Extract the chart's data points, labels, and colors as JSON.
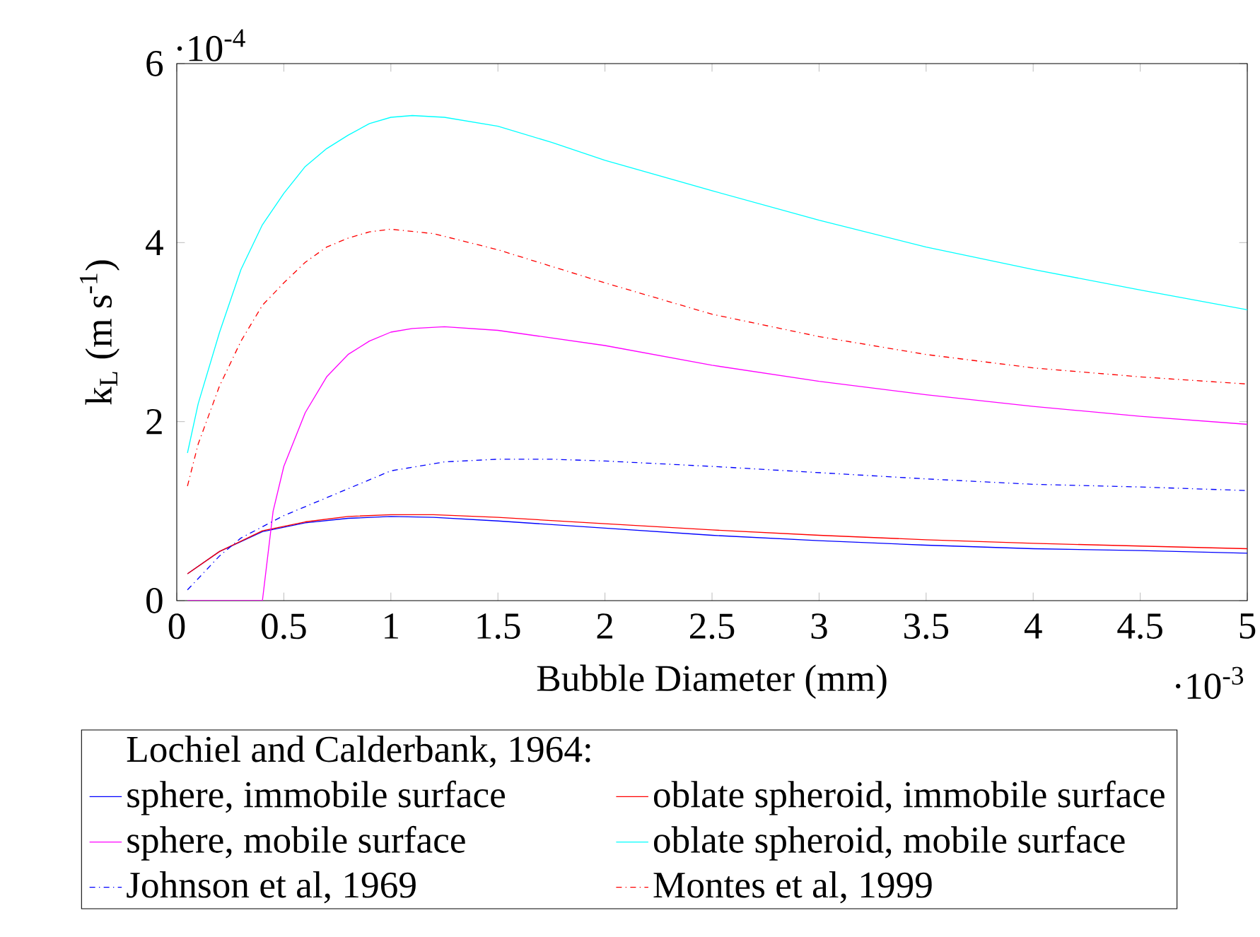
{
  "chart_data": {
    "type": "line",
    "xlabel": "Bubble Diameter (mm)",
    "ylabel": "k$_{L}$ (m s$^{-1}$)",
    "legend_title": "Lochiel and Calderbank, 1964:",
    "legend": "bottom",
    "xlim": [
      0,
      5
    ],
    "ylim": [
      0,
      6
    ],
    "xticks": [
      0,
      0.5,
      1,
      1.5,
      2,
      2.5,
      3,
      3.5,
      4,
      4.5,
      5
    ],
    "yticks": [
      0,
      2,
      4,
      6
    ],
    "annotations": [
      "·10$^{-4}$",
      "·10$^{-3}$"
    ],
    "series": [
      {
        "name": "sphere, immobile surface",
        "color": "#0000ff",
        "line_style": "solid",
        "x": [
          0.05,
          0.2,
          0.4,
          0.6,
          0.8,
          1.0,
          1.2,
          1.5,
          2,
          2.5,
          3,
          3.5,
          4,
          4.5,
          5
        ],
        "values": [
          0.3,
          0.55,
          0.77,
          0.87,
          0.92,
          0.94,
          0.93,
          0.89,
          0.81,
          0.73,
          0.67,
          0.62,
          0.58,
          0.56,
          0.53
        ]
      },
      {
        "name": "oblate spheroid, immobile surface",
        "color": "#ff0000",
        "line_style": "solid",
        "x": [
          0.05,
          0.2,
          0.4,
          0.6,
          0.8,
          1.0,
          1.2,
          1.5,
          2,
          2.5,
          3,
          3.5,
          4,
          4.5,
          5
        ],
        "values": [
          0.3,
          0.55,
          0.78,
          0.88,
          0.94,
          0.96,
          0.96,
          0.93,
          0.86,
          0.79,
          0.73,
          0.68,
          0.64,
          0.61,
          0.58
        ]
      },
      {
        "name": "sphere, mobile surface",
        "color": "#ff00ff",
        "line_style": "solid",
        "x": [
          0.05,
          0.4,
          0.45,
          0.5,
          0.6,
          0.7,
          0.8,
          0.9,
          1.0,
          1.1,
          1.25,
          1.5,
          2,
          2.5,
          3,
          3.5,
          4,
          4.5,
          5
        ],
        "values": [
          0,
          0,
          1.0,
          1.5,
          2.1,
          2.5,
          2.75,
          2.9,
          3.0,
          3.04,
          3.06,
          3.02,
          2.85,
          2.63,
          2.45,
          2.3,
          2.17,
          2.06,
          1.97
        ]
      },
      {
        "name": "oblate spheroid, mobile surface",
        "color": "#00ffff",
        "line_style": "solid",
        "x": [
          0.05,
          0.1,
          0.2,
          0.3,
          0.4,
          0.5,
          0.6,
          0.7,
          0.8,
          0.9,
          1.0,
          1.1,
          1.25,
          1.5,
          1.75,
          2.0,
          2.5,
          3.0,
          3.5,
          4.0,
          4.5,
          5.0
        ],
        "values": [
          1.65,
          2.2,
          3.0,
          3.7,
          4.2,
          4.55,
          4.85,
          5.05,
          5.2,
          5.33,
          5.4,
          5.42,
          5.4,
          5.3,
          5.12,
          4.92,
          4.58,
          4.25,
          3.95,
          3.7,
          3.47,
          3.25
        ]
      },
      {
        "name": "Johnson et al, 1969",
        "color": "#0000ff",
        "line_style": "dashdot",
        "x": [
          0.05,
          0.2,
          0.3,
          0.5,
          0.75,
          1.0,
          1.25,
          1.5,
          1.75,
          2,
          2.5,
          3,
          3.5,
          4,
          4.5,
          5
        ],
        "values": [
          0.12,
          0.5,
          0.7,
          0.95,
          1.2,
          1.45,
          1.55,
          1.58,
          1.58,
          1.56,
          1.5,
          1.43,
          1.36,
          1.3,
          1.27,
          1.23
        ]
      },
      {
        "name": "Montes et al, 1999",
        "color": "#ff0000",
        "line_style": "dashdot",
        "x": [
          0.05,
          0.1,
          0.2,
          0.3,
          0.4,
          0.5,
          0.6,
          0.7,
          0.8,
          0.9,
          1.0,
          1.2,
          1.5,
          2,
          2.5,
          3,
          3.5,
          4,
          4.5,
          5
        ],
        "values": [
          1.28,
          1.75,
          2.4,
          2.9,
          3.3,
          3.55,
          3.78,
          3.95,
          4.05,
          4.12,
          4.15,
          4.1,
          3.92,
          3.55,
          3.2,
          2.95,
          2.75,
          2.6,
          2.5,
          2.42
        ]
      }
    ]
  }
}
